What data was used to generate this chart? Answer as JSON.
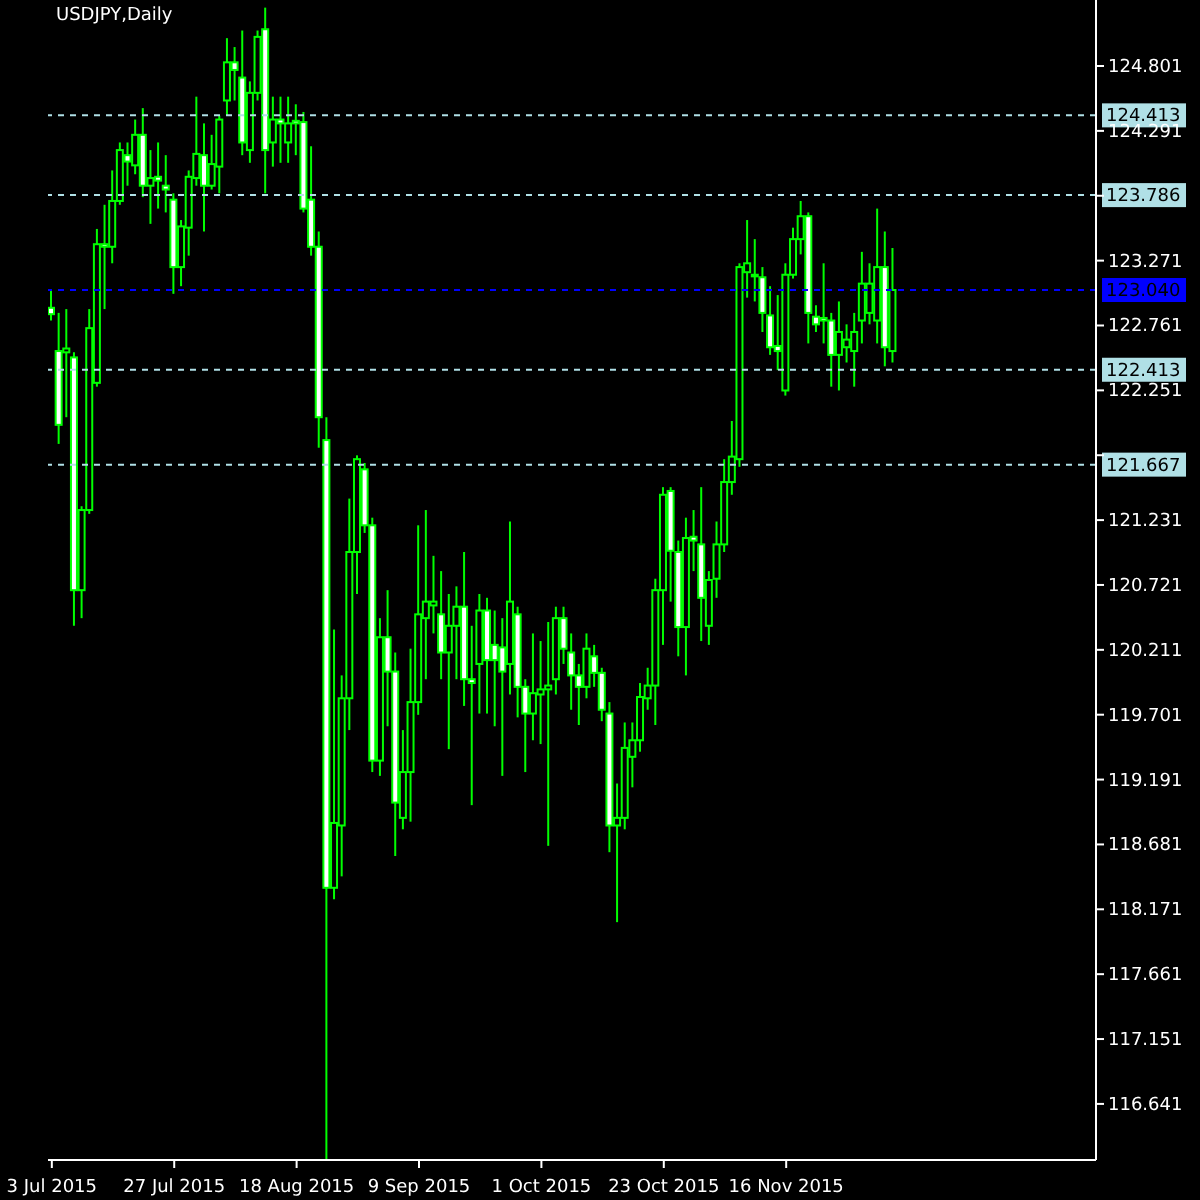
{
  "chart_data": {
    "type": "candlestick",
    "title": "USDJPY,Daily",
    "categories": [
      "3 Jul 2015",
      null,
      null,
      null,
      null,
      null,
      null,
      null,
      null,
      null,
      null,
      null,
      null,
      null,
      null,
      null,
      "27 Jul 2015",
      null,
      null,
      null,
      null,
      null,
      null,
      null,
      null,
      null,
      null,
      null,
      null,
      null,
      null,
      null,
      "18 Aug 2015",
      null,
      null,
      null,
      null,
      null,
      null,
      null,
      null,
      null,
      null,
      null,
      null,
      null,
      null,
      null,
      "9 Sep 2015",
      null,
      null,
      null,
      null,
      null,
      null,
      null,
      null,
      null,
      null,
      null,
      null,
      null,
      null,
      null,
      "1 Oct 2015",
      null,
      null,
      null,
      null,
      null,
      null,
      null,
      null,
      null,
      null,
      null,
      null,
      null,
      null,
      null,
      "23 Oct 2015",
      null,
      null,
      null,
      null,
      null,
      null,
      null,
      null,
      null,
      null,
      null,
      null,
      null,
      null,
      null,
      "16 Nov 2015",
      null,
      null,
      null,
      null,
      null,
      null,
      null,
      null,
      null,
      null,
      null,
      null,
      null,
      null,
      null,
      null,
      null,
      null,
      null,
      null,
      null,
      null,
      null,
      null,
      null,
      null,
      null,
      null,
      null,
      null,
      null,
      null,
      null,
      null,
      null,
      null,
      null,
      null,
      null,
      null
    ],
    "ohlc": [
      [
        122.9,
        123.04,
        122.8,
        122.85
      ],
      [
        122.56,
        122.86,
        121.83,
        121.98
      ],
      [
        122.55,
        122.89,
        122.04,
        122.58
      ],
      [
        122.51,
        122.55,
        120.4,
        120.68
      ],
      [
        120.68,
        121.34,
        120.46,
        121.31
      ],
      [
        121.31,
        122.89,
        121.28,
        122.74
      ],
      [
        122.31,
        123.52,
        122.28,
        123.4
      ],
      [
        123.4,
        123.71,
        122.89,
        123.38
      ],
      [
        123.38,
        123.98,
        123.25,
        123.74
      ],
      [
        123.74,
        124.2,
        123.71,
        124.14
      ],
      [
        124.1,
        124.2,
        123.86,
        124.05
      ],
      [
        124.02,
        124.38,
        123.95,
        124.26
      ],
      [
        124.26,
        124.47,
        123.77,
        123.86
      ],
      [
        123.86,
        124.14,
        123.56,
        123.92
      ],
      [
        123.93,
        124.2,
        123.68,
        123.9
      ],
      [
        123.86,
        124.1,
        123.65,
        123.83
      ],
      [
        123.75,
        123.8,
        123.01,
        123.22
      ],
      [
        123.22,
        123.59,
        123.07,
        123.54
      ],
      [
        123.53,
        123.98,
        123.31,
        123.93
      ],
      [
        123.92,
        124.56,
        123.86,
        124.11
      ],
      [
        124.1,
        124.35,
        123.5,
        123.86
      ],
      [
        123.86,
        124.26,
        123.83,
        124.03
      ],
      [
        124.01,
        124.41,
        123.8,
        124.38
      ],
      [
        124.53,
        125.02,
        124.41,
        124.83
      ],
      [
        124.83,
        124.95,
        124.53,
        124.77
      ],
      [
        124.71,
        125.08,
        124.1,
        124.2
      ],
      [
        124.14,
        124.68,
        124.04,
        124.59
      ],
      [
        124.59,
        125.08,
        124.53,
        125.03
      ],
      [
        125.09,
        125.26,
        123.8,
        124.14
      ],
      [
        124.2,
        124.56,
        124.01,
        124.38
      ],
      [
        124.38,
        124.56,
        124.04,
        124.35
      ],
      [
        124.2,
        124.56,
        124.04,
        124.35
      ],
      [
        124.37,
        124.5,
        124.1,
        124.35
      ],
      [
        124.36,
        124.44,
        123.65,
        123.68
      ],
      [
        123.75,
        124.17,
        123.31,
        123.38
      ],
      [
        123.38,
        123.5,
        121.8,
        122.04
      ],
      [
        121.86,
        122.04,
        116.2,
        118.34
      ],
      [
        118.34,
        120.37,
        118.25,
        118.85
      ],
      [
        118.83,
        120.01,
        118.43,
        119.83
      ],
      [
        119.83,
        121.4,
        119.58,
        120.98
      ],
      [
        120.98,
        121.74,
        120.65,
        121.71
      ],
      [
        121.63,
        121.68,
        121.13,
        121.19
      ],
      [
        121.19,
        121.25,
        119.25,
        119.34
      ],
      [
        119.34,
        120.46,
        119.22,
        120.31
      ],
      [
        120.31,
        120.68,
        119.61,
        120.04
      ],
      [
        120.04,
        120.19,
        118.59,
        119.01
      ],
      [
        118.89,
        119.58,
        118.8,
        119.25
      ],
      [
        119.25,
        120.22,
        118.86,
        119.8
      ],
      [
        119.8,
        121.19,
        119.7,
        120.49
      ],
      [
        120.46,
        121.31,
        119.98,
        120.59
      ],
      [
        120.56,
        120.95,
        120.34,
        120.59
      ],
      [
        120.49,
        120.83,
        119.98,
        120.19
      ],
      [
        120.19,
        120.65,
        119.43,
        120.4
      ],
      [
        120.4,
        120.71,
        119.98,
        120.55
      ],
      [
        120.55,
        120.98,
        119.77,
        119.98
      ],
      [
        119.98,
        120.4,
        118.99,
        119.95
      ],
      [
        120.1,
        120.65,
        119.71,
        120.52
      ],
      [
        120.52,
        120.62,
        119.71,
        120.13
      ],
      [
        120.25,
        120.52,
        119.61,
        120.13
      ],
      [
        120.23,
        120.46,
        119.22,
        120.04
      ],
      [
        120.1,
        121.22,
        119.86,
        120.59
      ],
      [
        120.49,
        120.55,
        119.68,
        119.92
      ],
      [
        119.92,
        119.98,
        119.25,
        119.71
      ],
      [
        119.71,
        120.34,
        119.5,
        119.87
      ],
      [
        119.86,
        120.28,
        119.47,
        119.9
      ],
      [
        119.9,
        120.43,
        118.67,
        119.93
      ],
      [
        119.98,
        120.55,
        119.86,
        120.46
      ],
      [
        120.46,
        120.55,
        120.1,
        120.22
      ],
      [
        120.19,
        120.34,
        119.74,
        120.01
      ],
      [
        120.01,
        120.1,
        119.62,
        119.92
      ],
      [
        119.92,
        120.34,
        119.83,
        120.22
      ],
      [
        120.16,
        120.25,
        119.92,
        120.03
      ],
      [
        120.03,
        120.07,
        119.65,
        119.74
      ],
      [
        119.71,
        119.8,
        118.62,
        118.83
      ],
      [
        118.83,
        119.16,
        118.07,
        118.89
      ],
      [
        118.89,
        119.64,
        118.8,
        119.44
      ],
      [
        119.37,
        119.64,
        119.13,
        119.5
      ],
      [
        119.5,
        119.95,
        119.41,
        119.84
      ],
      [
        119.83,
        120.07,
        119.74,
        119.93
      ],
      [
        119.93,
        120.77,
        119.62,
        120.68
      ],
      [
        120.68,
        121.49,
        120.25,
        121.43
      ],
      [
        121.46,
        121.49,
        120.59,
        120.99
      ],
      [
        120.98,
        121.07,
        120.16,
        120.39
      ],
      [
        120.39,
        121.25,
        120.01,
        121.09
      ],
      [
        121.1,
        121.31,
        120.83,
        121.07
      ],
      [
        121.04,
        121.49,
        120.28,
        120.62
      ],
      [
        120.4,
        120.83,
        120.25,
        120.76
      ],
      [
        120.77,
        121.22,
        120.62,
        121.04
      ],
      [
        121.04,
        121.71,
        120.98,
        121.53
      ],
      [
        121.53,
        122.01,
        121.43,
        121.73
      ],
      [
        121.71,
        123.25,
        121.65,
        123.22
      ],
      [
        123.18,
        123.59,
        122.98,
        123.25
      ],
      [
        123.16,
        123.44,
        122.95,
        123.15
      ],
      [
        123.14,
        123.22,
        122.71,
        122.86
      ],
      [
        122.84,
        123.07,
        122.53,
        122.59
      ],
      [
        122.6,
        123.0,
        122.41,
        122.56
      ],
      [
        122.25,
        123.25,
        122.21,
        123.16
      ],
      [
        123.16,
        123.53,
        123.13,
        123.44
      ],
      [
        123.44,
        123.74,
        123.32,
        123.62
      ],
      [
        123.62,
        123.65,
        122.62,
        122.86
      ],
      [
        122.83,
        122.92,
        122.71,
        122.77
      ],
      [
        122.82,
        123.25,
        122.62,
        122.8
      ],
      [
        122.8,
        122.86,
        122.28,
        122.53
      ],
      [
        122.53,
        122.95,
        122.25,
        122.71
      ],
      [
        122.59,
        122.77,
        122.47,
        122.65
      ],
      [
        122.56,
        122.86,
        122.28,
        122.71
      ],
      [
        122.8,
        123.34,
        122.62,
        123.09
      ],
      [
        122.86,
        123.25,
        122.77,
        123.09
      ],
      [
        122.8,
        123.68,
        122.62,
        123.22
      ],
      [
        123.22,
        123.5,
        122.44,
        122.59
      ],
      [
        122.56,
        123.37,
        122.47,
        123.04
      ],
      null,
      null,
      null,
      null,
      null,
      null,
      null,
      null,
      null,
      null,
      null,
      null,
      null,
      null,
      null,
      null,
      null,
      null,
      null,
      null,
      null,
      null,
      null,
      null,
      null,
      null
    ],
    "ylim": [
      116.2,
      125.32
    ],
    "yticks": [
      116.641,
      117.151,
      117.661,
      118.171,
      118.681,
      119.191,
      119.701,
      120.211,
      120.721,
      121.231,
      {
        "value": 121.741,
        "label": null
      },
      122.251,
      122.761,
      123.271,
      {
        "value": 123.781,
        "label": null
      },
      124.291,
      124.801
    ],
    "ref_lines": [
      {
        "axis": "y",
        "value": 124.413,
        "label": "124.413",
        "color": "#b0e0e6",
        "line_style": "dashed"
      },
      {
        "axis": "y",
        "value": 123.786,
        "label": "123.786",
        "color": "#b0e0e6",
        "line_style": "dashed"
      },
      {
        "axis": "y",
        "value": 123.04,
        "label": "123.040",
        "color": "#0000ff",
        "line_style": "dashed"
      },
      {
        "axis": "y",
        "value": 122.413,
        "label": "122.413",
        "color": "#b0e0e6",
        "line_style": "dashed"
      },
      {
        "axis": "y",
        "value": 121.667,
        "label": "121.667",
        "color": "#b0e0e6",
        "line_style": "dashed"
      }
    ],
    "grid": false,
    "legend": false
  }
}
